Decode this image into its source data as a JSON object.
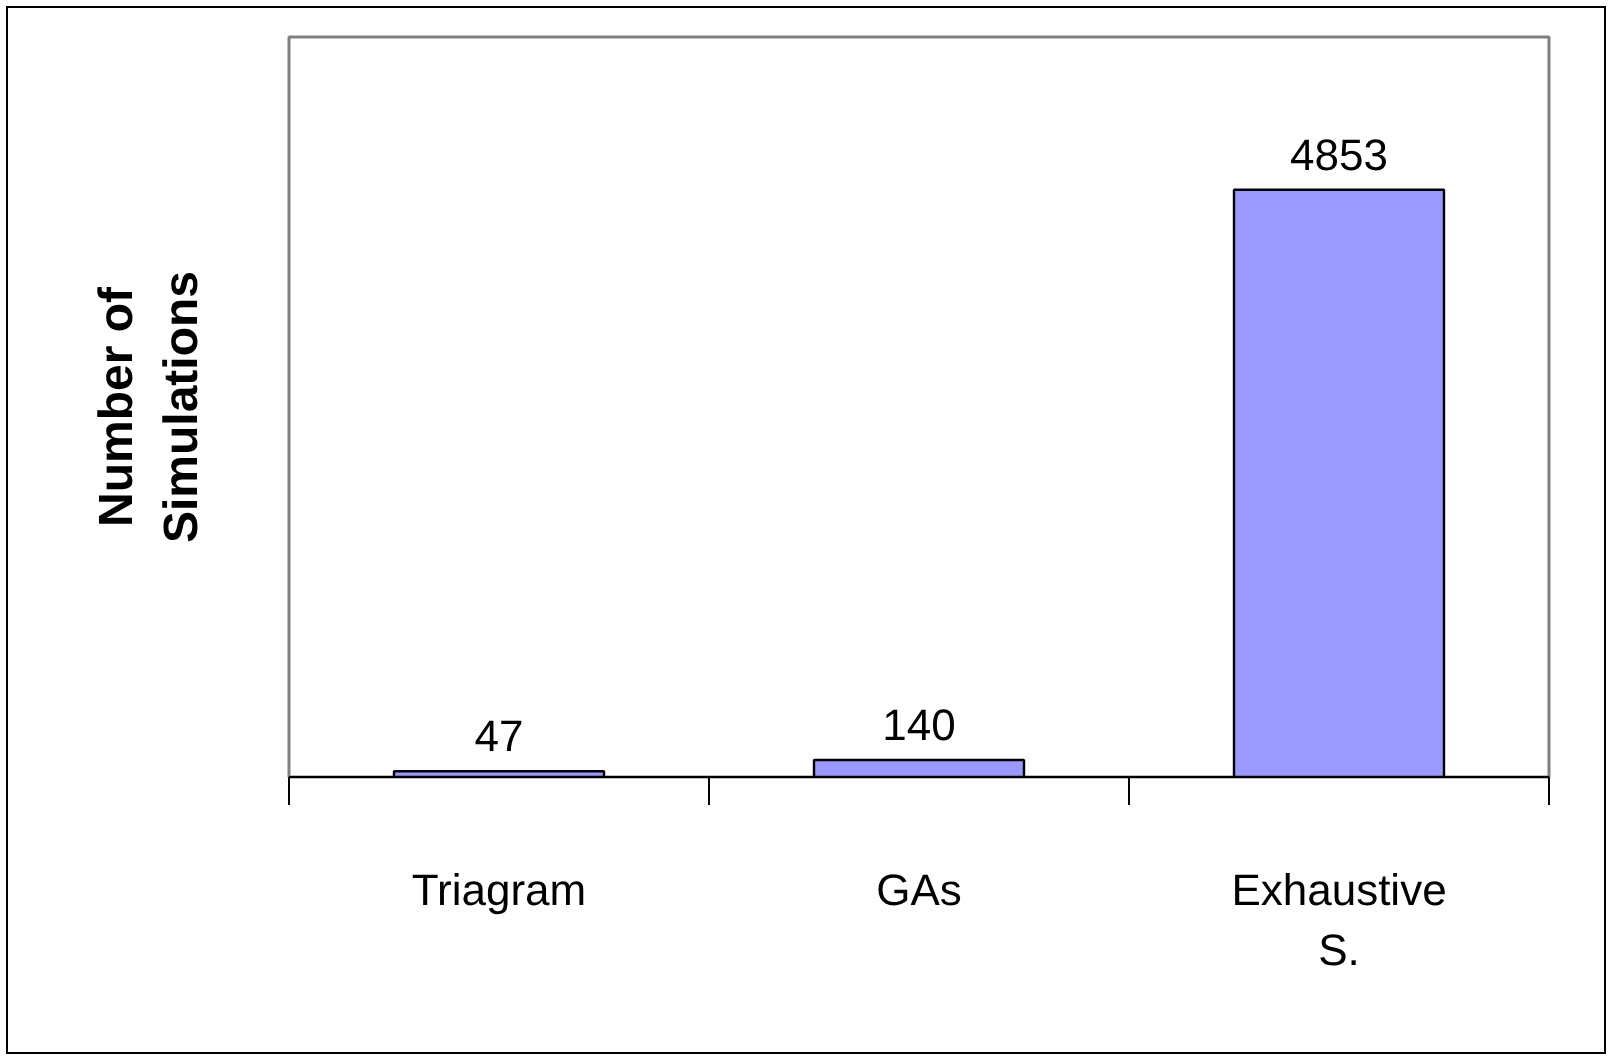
{
  "chart_data": {
    "type": "bar",
    "ylabel": "Number of Simulations",
    "categories": [
      "Triagram",
      "GAs",
      "Exhaustive S."
    ],
    "values": [
      47,
      140,
      4853
    ],
    "color": "#9999ff",
    "data_labels": true
  }
}
